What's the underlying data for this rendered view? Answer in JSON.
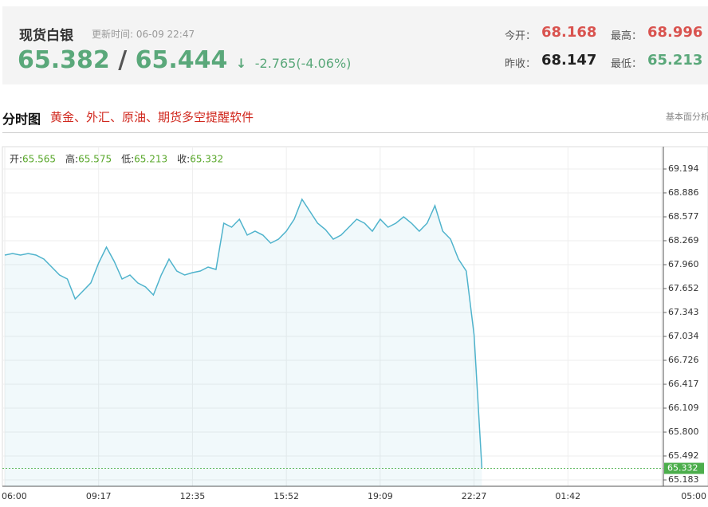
{
  "header": {
    "title": "现货白银",
    "update_time": "更新时间: 06-09 22:47",
    "bid": "65.382",
    "separator": "/",
    "ask": "65.444",
    "arrow": "↓",
    "change": "-2.765(-4.06%)",
    "stats": [
      {
        "label": "今开：",
        "value": "68.168"
      },
      {
        "label": "最高：",
        "value": "68.996"
      },
      {
        "label": "昨收：",
        "value": "68.147"
      },
      {
        "label": "最低：",
        "value": "65.213"
      }
    ]
  },
  "section": {
    "title": "分时图",
    "promo": "黄金、外汇、原油、期货多空提醒软件",
    "tab": "基本面分析"
  },
  "chart_data": {
    "type": "line",
    "grid": true,
    "ohlc": [
      {
        "label": "开:",
        "value": "65.565"
      },
      {
        "label": "高:",
        "value": "65.575"
      },
      {
        "label": "低:",
        "value": "65.213"
      },
      {
        "label": "收:",
        "value": "65.332"
      }
    ],
    "categories": [
      "06:00",
      null,
      null,
      null,
      null,
      null,
      null,
      null,
      null,
      null,
      null,
      null,
      "09:17",
      null,
      null,
      null,
      null,
      null,
      null,
      null,
      null,
      null,
      null,
      null,
      "12:35",
      null,
      null,
      null,
      null,
      null,
      null,
      null,
      null,
      null,
      null,
      null,
      "15:52",
      null,
      null,
      null,
      null,
      null,
      null,
      null,
      null,
      null,
      null,
      null,
      "19:09",
      null,
      null,
      null,
      null,
      null,
      null,
      null,
      null,
      null,
      null,
      null,
      "22:27",
      null,
      null,
      null,
      null,
      null,
      null,
      null,
      null,
      null,
      null,
      null,
      "01:42",
      null,
      null,
      null,
      null,
      null,
      null,
      null,
      null,
      null,
      null,
      null,
      "05:00"
    ],
    "series": [
      {
        "color": "#4fb3cc",
        "values": [
          68.083,
          68.104,
          68.083,
          68.104,
          68.083,
          68.032,
          67.929,
          67.826,
          67.775,
          67.518,
          67.621,
          67.724,
          67.981,
          68.186,
          68.001,
          67.775,
          67.826,
          67.724,
          67.672,
          67.569,
          67.826,
          68.032,
          67.878,
          67.826,
          67.857,
          67.878,
          67.929,
          67.898,
          68.495,
          68.443,
          68.546,
          68.341,
          68.392,
          68.341,
          68.238,
          68.289,
          68.392,
          68.546,
          68.803,
          68.649,
          68.495,
          68.412,
          68.289,
          68.341,
          68.443,
          68.546,
          68.495,
          68.392,
          68.546,
          68.443,
          68.495,
          68.577,
          68.495,
          68.392,
          68.495,
          68.721,
          68.392,
          68.289,
          68.032,
          67.878,
          67.055,
          65.332,
          null,
          null,
          null,
          null,
          null,
          null,
          null,
          null,
          null,
          null,
          null,
          null,
          null,
          null,
          null,
          null,
          null,
          null,
          null,
          null,
          null,
          null,
          null
        ]
      }
    ],
    "ylim": [
      65.101,
      69.482
    ],
    "yticks": [
      69.194,
      68.886,
      68.577,
      68.269,
      {
        "value": 67.96,
        "label": "67.960"
      },
      67.652,
      67.343,
      67.034,
      66.726,
      66.417,
      66.109,
      {
        "value": 65.8,
        "label": "65.800"
      },
      65.492,
      65.183
    ]
  }
}
